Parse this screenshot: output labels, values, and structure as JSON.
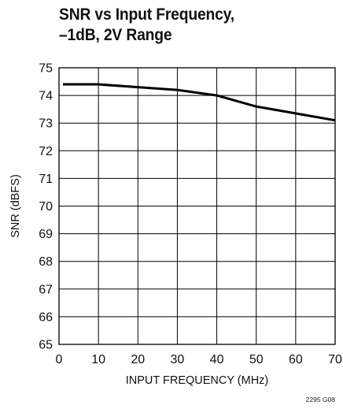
{
  "title_lines": [
    "SNR vs Input Frequency,",
    "–1dB, 2V Range"
  ],
  "footnote": "2295 G08",
  "chart_data": {
    "type": "line",
    "title": "SNR vs Input Frequency, –1dB, 2V Range",
    "xlabel": "INPUT FREQUENCY (MHz)",
    "ylabel": "SNR (dBFS)",
    "xlim": [
      0,
      70
    ],
    "ylim": [
      65,
      75
    ],
    "xticks": [
      0,
      10,
      20,
      30,
      40,
      50,
      60,
      70
    ],
    "yticks": [
      65,
      66,
      67,
      68,
      69,
      70,
      71,
      72,
      73,
      74,
      75
    ],
    "grid": true,
    "line_color": "#000000",
    "series": [
      {
        "x": [
          1,
          5,
          10,
          20,
          30,
          40,
          50,
          60,
          70
        ],
        "y": [
          74.4,
          74.4,
          74.4,
          74.3,
          74.2,
          74.0,
          73.6,
          73.35,
          73.1
        ]
      }
    ]
  }
}
